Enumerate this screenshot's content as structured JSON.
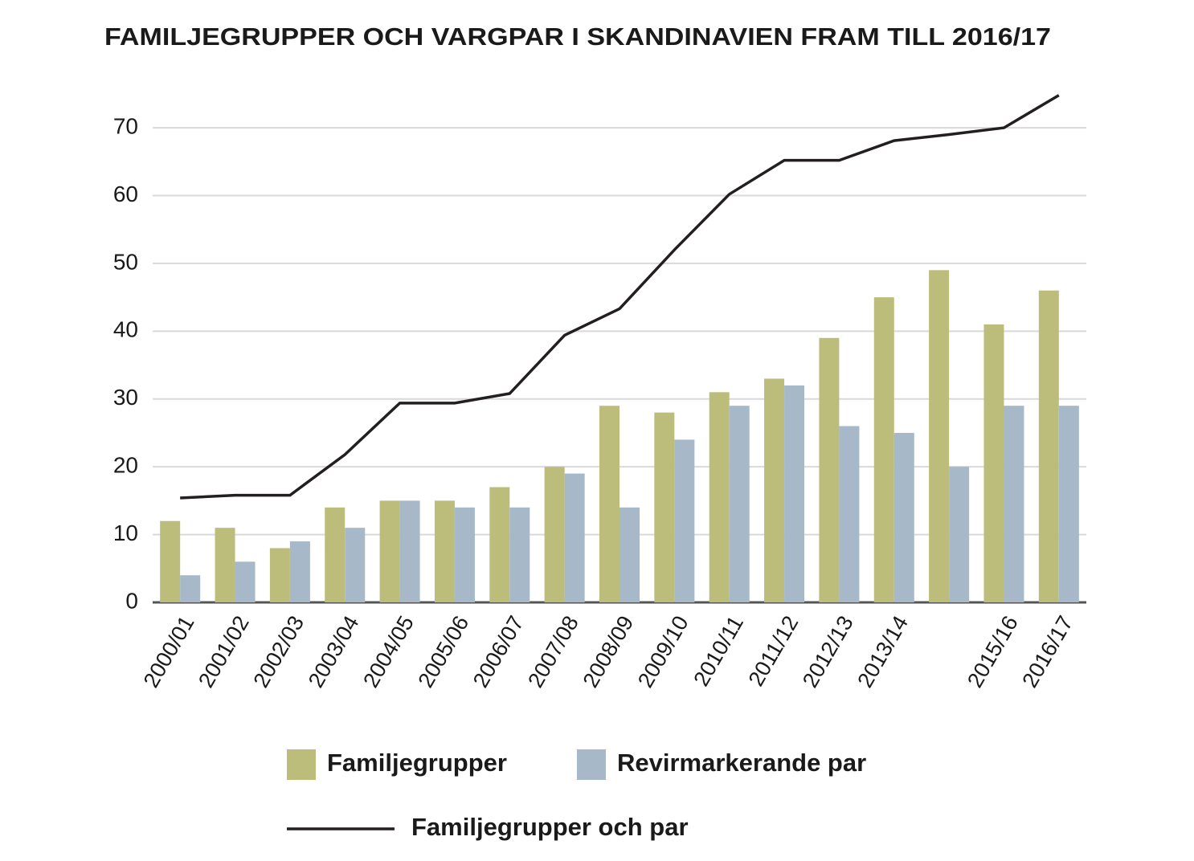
{
  "chart_data": {
    "type": "bar",
    "title": "FAMILJEGRUPPER OCH VARGPAR I SKANDINAVIEN FRAM TILL 2016/17",
    "categories": [
      "2000/01",
      "2001/02",
      "2002/03",
      "2003/04",
      "2004/05",
      "2005/06",
      "2006/07",
      "2007/08",
      "2008/09",
      "2009/10",
      "2010/11",
      "2011/12",
      "2012/13",
      "2013/14",
      null,
      "2015/16",
      "2016/17"
    ],
    "series": [
      {
        "name": "Familjegrupper",
        "type": "bar",
        "color": "#bcbd7b",
        "values": [
          12,
          11,
          8,
          14,
          15,
          15,
          17,
          20,
          29,
          28,
          31,
          33,
          39,
          45,
          49,
          41,
          46
        ]
      },
      {
        "name": "Revirmarkerande par",
        "type": "bar",
        "color": "#a7b8c8",
        "values": [
          4,
          6,
          9,
          11,
          15,
          14,
          14,
          19,
          14,
          24,
          29,
          32,
          26,
          25,
          20,
          29,
          29
        ]
      },
      {
        "name": "Familjegrupper och par",
        "type": "line",
        "color": "#231f20",
        "values": [
          15.4,
          15.8,
          15.8,
          21.8,
          29.4,
          29.4,
          30.8,
          39.4,
          43.3,
          52,
          60.2,
          65.2,
          65.2,
          68.1,
          69,
          70,
          74.8
        ]
      }
    ],
    "ylim": [
      0,
      77
    ],
    "yticks": [
      0,
      10,
      20,
      30,
      40,
      50,
      60,
      70
    ],
    "grid": true
  }
}
